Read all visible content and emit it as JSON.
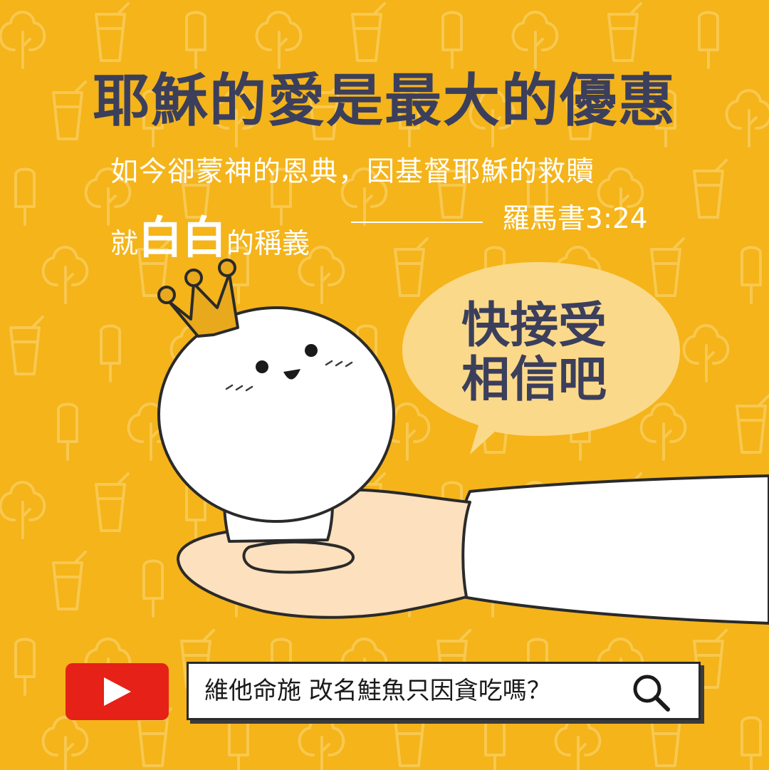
{
  "title": "耶穌的愛是最大的優惠",
  "verse": {
    "line1": "如今卻蒙神的恩典，因基督耶穌的救贖",
    "line2_prefix": "就",
    "line2_emphasis": "白白",
    "line2_suffix": "的稱義",
    "reference": "羅馬書3:24"
  },
  "speech_bubble": {
    "line1": "快接受",
    "line2": "相信吧"
  },
  "search_bar": {
    "query": "維他命施 改名鮭魚只因貪吃嗎？",
    "icon": "magnifier-icon"
  },
  "youtube_icon": "youtube-play-icon",
  "colors": {
    "background": "#f4b41a",
    "title": "#3b3f5c",
    "youtube_red": "#e62117",
    "crown": "#e8a91c",
    "skin": "#fde0bd",
    "bubble": "#fbd98a"
  }
}
